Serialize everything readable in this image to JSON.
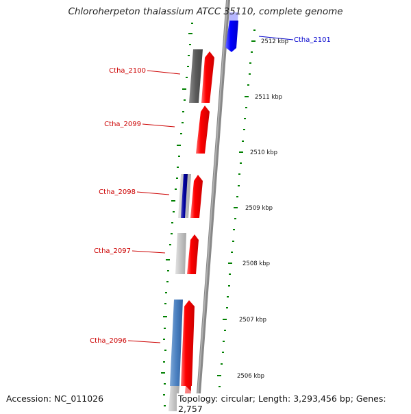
{
  "title": "Chloroherpeton thalassium ATCC 35110, complete genome",
  "footer": {
    "accession": "Accession: NC_011026",
    "topology": "Topology: circular; Length: 3,293,456 bp; Genes: 2,757"
  },
  "colors": {
    "forward_gene": "#ff0000",
    "reverse_gene": "#0000ff",
    "label_red": "#cc0000",
    "label_blue": "#0000cc",
    "tick_green": "#008000",
    "backbone": "#808080"
  },
  "gene_labels": [
    {
      "id": "ctha-2101",
      "text": "Ctha_2101",
      "color": "#0000cc"
    },
    {
      "id": "ctha-2100",
      "text": "Ctha_2100",
      "color": "#cc0000"
    },
    {
      "id": "ctha-2099",
      "text": "Ctha_2099",
      "color": "#cc0000"
    },
    {
      "id": "ctha-2098",
      "text": "Ctha_2098",
      "color": "#cc0000"
    },
    {
      "id": "ctha-2097",
      "text": "Ctha_2097",
      "color": "#cc0000"
    },
    {
      "id": "ctha-2096",
      "text": "Ctha_2096",
      "color": "#cc0000"
    }
  ],
  "scale_labels": [
    "2512 kbp",
    "2511 kbp",
    "2510 kbp",
    "2509 kbp",
    "2508 kbp",
    "2507 kbp",
    "2506 kbp"
  ]
}
